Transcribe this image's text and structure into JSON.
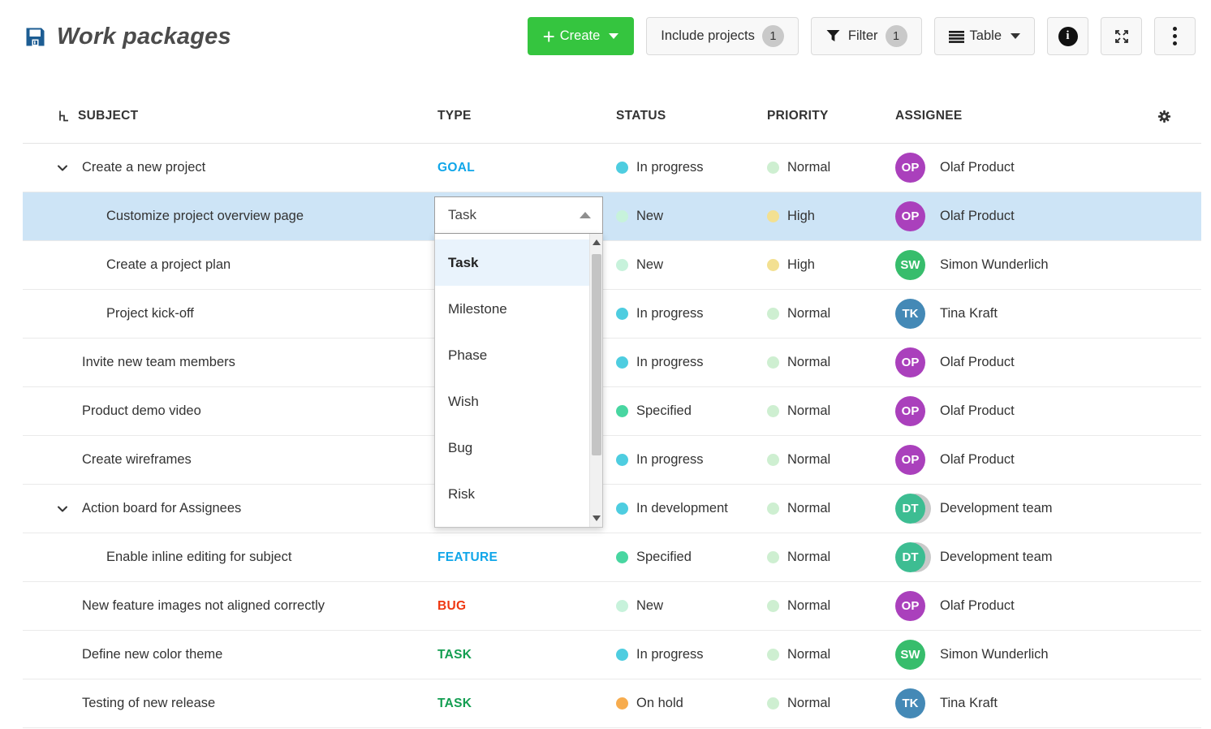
{
  "header": {
    "title": "Work packages"
  },
  "toolbar": {
    "create_label": "Create",
    "include_projects_label": "Include projects",
    "include_projects_count": "1",
    "filter_label": "Filter",
    "filter_count": "1",
    "table_label": "Table"
  },
  "icons": {
    "title": "save-icon",
    "subject_header": "hierarchy-icon",
    "settings": "gear-icon",
    "filter": "funnel-icon",
    "table": "list-bars-icon",
    "info": "info-icon",
    "fullscreen": "expand-icon",
    "more": "kebab-menu-icon",
    "row_chevron": "chevron-down-icon",
    "dropdown_caret": "caret-up-icon"
  },
  "table": {
    "columns": {
      "subject": "SUBJECT",
      "type": "TYPE",
      "status": "STATUS",
      "priority": "PRIORITY",
      "assignee": "ASSIGNEE"
    },
    "rows": [
      {
        "subject": "Create a new project",
        "indent": 0,
        "expandable": true,
        "selected": false,
        "type": "GOAL",
        "type_key": "goal",
        "status": "In progress",
        "status_key": "inprogress",
        "priority": "Normal",
        "priority_key": "normal",
        "assignee": "Olaf Product",
        "initials": "OP",
        "avatar_key": "op",
        "group": false
      },
      {
        "subject": "Customize project overview page",
        "indent": 1,
        "expandable": false,
        "selected": true,
        "type": "",
        "type_key": "",
        "status": "New",
        "status_key": "new",
        "priority": "High",
        "priority_key": "high",
        "assignee": "Olaf Product",
        "initials": "OP",
        "avatar_key": "op",
        "group": false
      },
      {
        "subject": "Create a project plan",
        "indent": 1,
        "expandable": false,
        "selected": false,
        "type": "",
        "type_key": "",
        "status": "New",
        "status_key": "new",
        "priority": "High",
        "priority_key": "high",
        "assignee": "Simon Wunderlich",
        "initials": "SW",
        "avatar_key": "sw",
        "group": false
      },
      {
        "subject": "Project kick-off",
        "indent": 1,
        "expandable": false,
        "selected": false,
        "type": "",
        "type_key": "",
        "status": "In progress",
        "status_key": "inprogress",
        "priority": "Normal",
        "priority_key": "normal",
        "assignee": "Tina Kraft",
        "initials": "TK",
        "avatar_key": "tk",
        "group": false
      },
      {
        "subject": "Invite new team members",
        "indent": 0,
        "expandable": false,
        "selected": false,
        "type": "",
        "type_key": "",
        "status": "In progress",
        "status_key": "inprogress",
        "priority": "Normal",
        "priority_key": "normal",
        "assignee": "Olaf Product",
        "initials": "OP",
        "avatar_key": "op",
        "group": false
      },
      {
        "subject": "Product demo video",
        "indent": 0,
        "expandable": false,
        "selected": false,
        "type": "",
        "type_key": "",
        "status": "Specified",
        "status_key": "specified",
        "priority": "Normal",
        "priority_key": "normal",
        "assignee": "Olaf Product",
        "initials": "OP",
        "avatar_key": "op",
        "group": false
      },
      {
        "subject": "Create wireframes",
        "indent": 0,
        "expandable": false,
        "selected": false,
        "type": "",
        "type_key": "",
        "status": "In progress",
        "status_key": "inprogress",
        "priority": "Normal",
        "priority_key": "normal",
        "assignee": "Olaf Product",
        "initials": "OP",
        "avatar_key": "op",
        "group": false
      },
      {
        "subject": "Action board for Assignees",
        "indent": 0,
        "expandable": true,
        "selected": false,
        "type": "",
        "type_key": "",
        "status": "In development",
        "status_key": "indevelopment",
        "priority": "Normal",
        "priority_key": "normal",
        "assignee": "Development team",
        "initials": "DT",
        "avatar_key": "dt",
        "group": true
      },
      {
        "subject": "Enable inline editing for subject",
        "indent": 1,
        "expandable": false,
        "selected": false,
        "type": "FEATURE",
        "type_key": "feature",
        "status": "Specified",
        "status_key": "specified",
        "priority": "Normal",
        "priority_key": "normal",
        "assignee": "Development team",
        "initials": "DT",
        "avatar_key": "dt",
        "group": true
      },
      {
        "subject": "New feature images not aligned correctly",
        "indent": 0,
        "expandable": false,
        "selected": false,
        "type": "BUG",
        "type_key": "bug",
        "status": "New",
        "status_key": "new",
        "priority": "Normal",
        "priority_key": "normal",
        "assignee": "Olaf Product",
        "initials": "OP",
        "avatar_key": "op",
        "group": false
      },
      {
        "subject": "Define new color theme",
        "indent": 0,
        "expandable": false,
        "selected": false,
        "type": "TASK",
        "type_key": "task",
        "status": "In progress",
        "status_key": "inprogress",
        "priority": "Normal",
        "priority_key": "normal",
        "assignee": "Simon Wunderlich",
        "initials": "SW",
        "avatar_key": "sw",
        "group": false
      },
      {
        "subject": "Testing of new release",
        "indent": 0,
        "expandable": false,
        "selected": false,
        "type": "TASK",
        "type_key": "task",
        "status": "On hold",
        "status_key": "onhold",
        "priority": "Normal",
        "priority_key": "normal",
        "assignee": "Tina Kraft",
        "initials": "TK",
        "avatar_key": "tk",
        "group": false
      }
    ]
  },
  "dropdown": {
    "value": "Task",
    "options": [
      {
        "label": "Task",
        "selected": true
      },
      {
        "label": "Milestone",
        "selected": false
      },
      {
        "label": "Phase",
        "selected": false
      },
      {
        "label": "Wish",
        "selected": false
      },
      {
        "label": "Bug",
        "selected": false
      },
      {
        "label": "Risk",
        "selected": false
      }
    ]
  },
  "colors": {
    "ui": {
      "accent_green": "#35c53f",
      "selected_row": "#cde4f6",
      "dropdown_highlight": "#e9f3fc",
      "save_icon_blue": "#1d5d93"
    },
    "types": {
      "goal": "#10a6e9",
      "feature": "#10a6e9",
      "bug": "#ef3812",
      "task": "#139e51"
    },
    "status": {
      "inprogress": "#4ecde0",
      "indevelopment": "#4ecde0",
      "new": "#c7f2db",
      "specified": "#48d6a1",
      "onhold": "#f7ac4e",
      "normal": "#ceefd1",
      "high": "#f3e091"
    },
    "avatars": {
      "op": "#aa40bc",
      "sw": "#37bd6c",
      "tk": "#4489b6",
      "dt": "#3dbd92"
    }
  }
}
